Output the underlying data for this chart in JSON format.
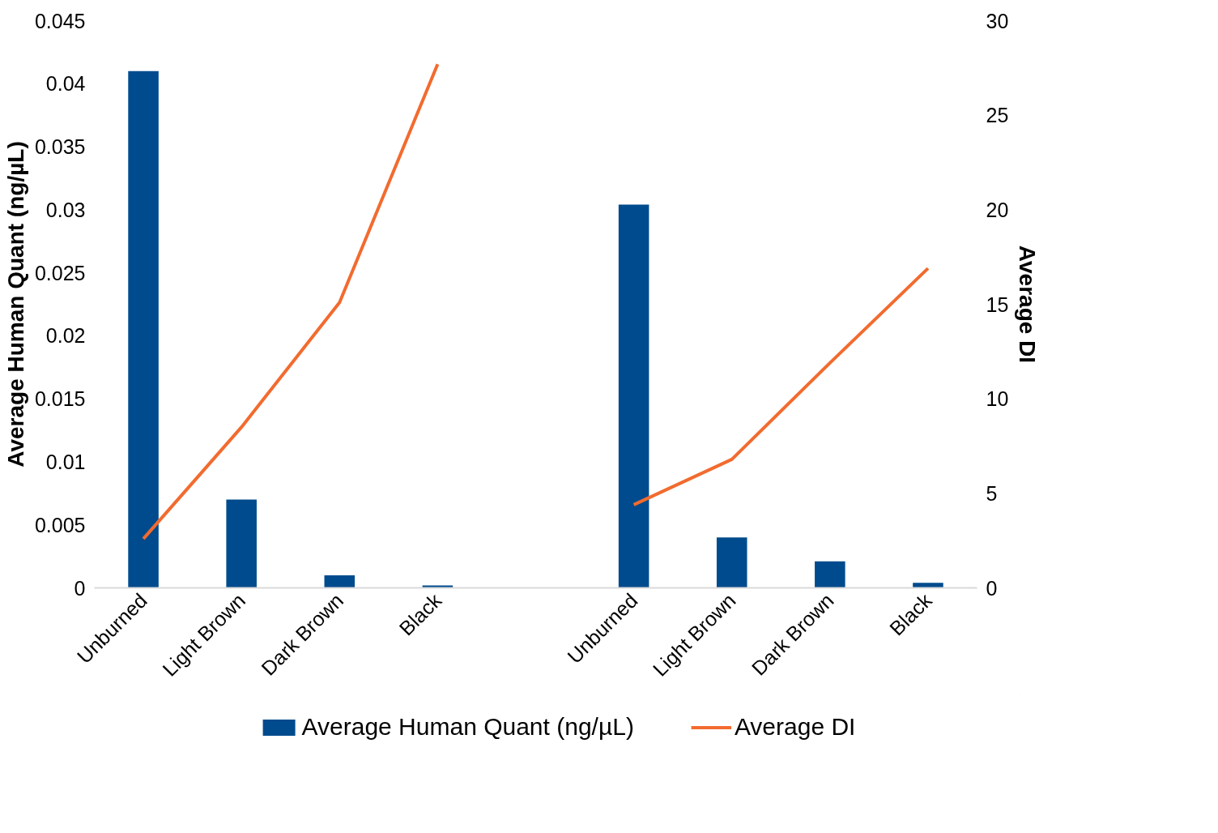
{
  "chart_data": {
    "type": "bar",
    "categories": [
      "Unburned",
      "Light Brown",
      "Dark Brown",
      "Black",
      null,
      "Unburned",
      "Light Brown",
      "Dark Brown",
      "Black"
    ],
    "series": [
      {
        "name": "Average Human Quant (ng/µL)",
        "color": "#004b8d",
        "values": [
          0.041,
          0.007,
          0.001,
          0.0002,
          null,
          0.0304,
          0.004,
          0.0021,
          0.0004
        ]
      },
      {
        "name": "Average DI",
        "type": "line",
        "axis": "y2",
        "color": "#f26b2f",
        "values": [
          2.6,
          8.5,
          15.1,
          27.7,
          null,
          4.4,
          6.8,
          11.9,
          16.9
        ]
      }
    ],
    "ylabel": "Average Human Quant (ng/µL)",
    "y2label": "Average DI",
    "ylim": [
      0,
      0.045
    ],
    "yticks": [
      0,
      0.005,
      0.01,
      0.015,
      0.02,
      0.025,
      0.03,
      0.035,
      0.04,
      0.045
    ],
    "y2lim": [
      0,
      30
    ],
    "y2ticks": [
      0,
      5,
      10,
      15,
      20,
      25,
      30
    ],
    "grid": false,
    "legend": "bottom",
    "marker": "none",
    "line_style": "solid"
  }
}
